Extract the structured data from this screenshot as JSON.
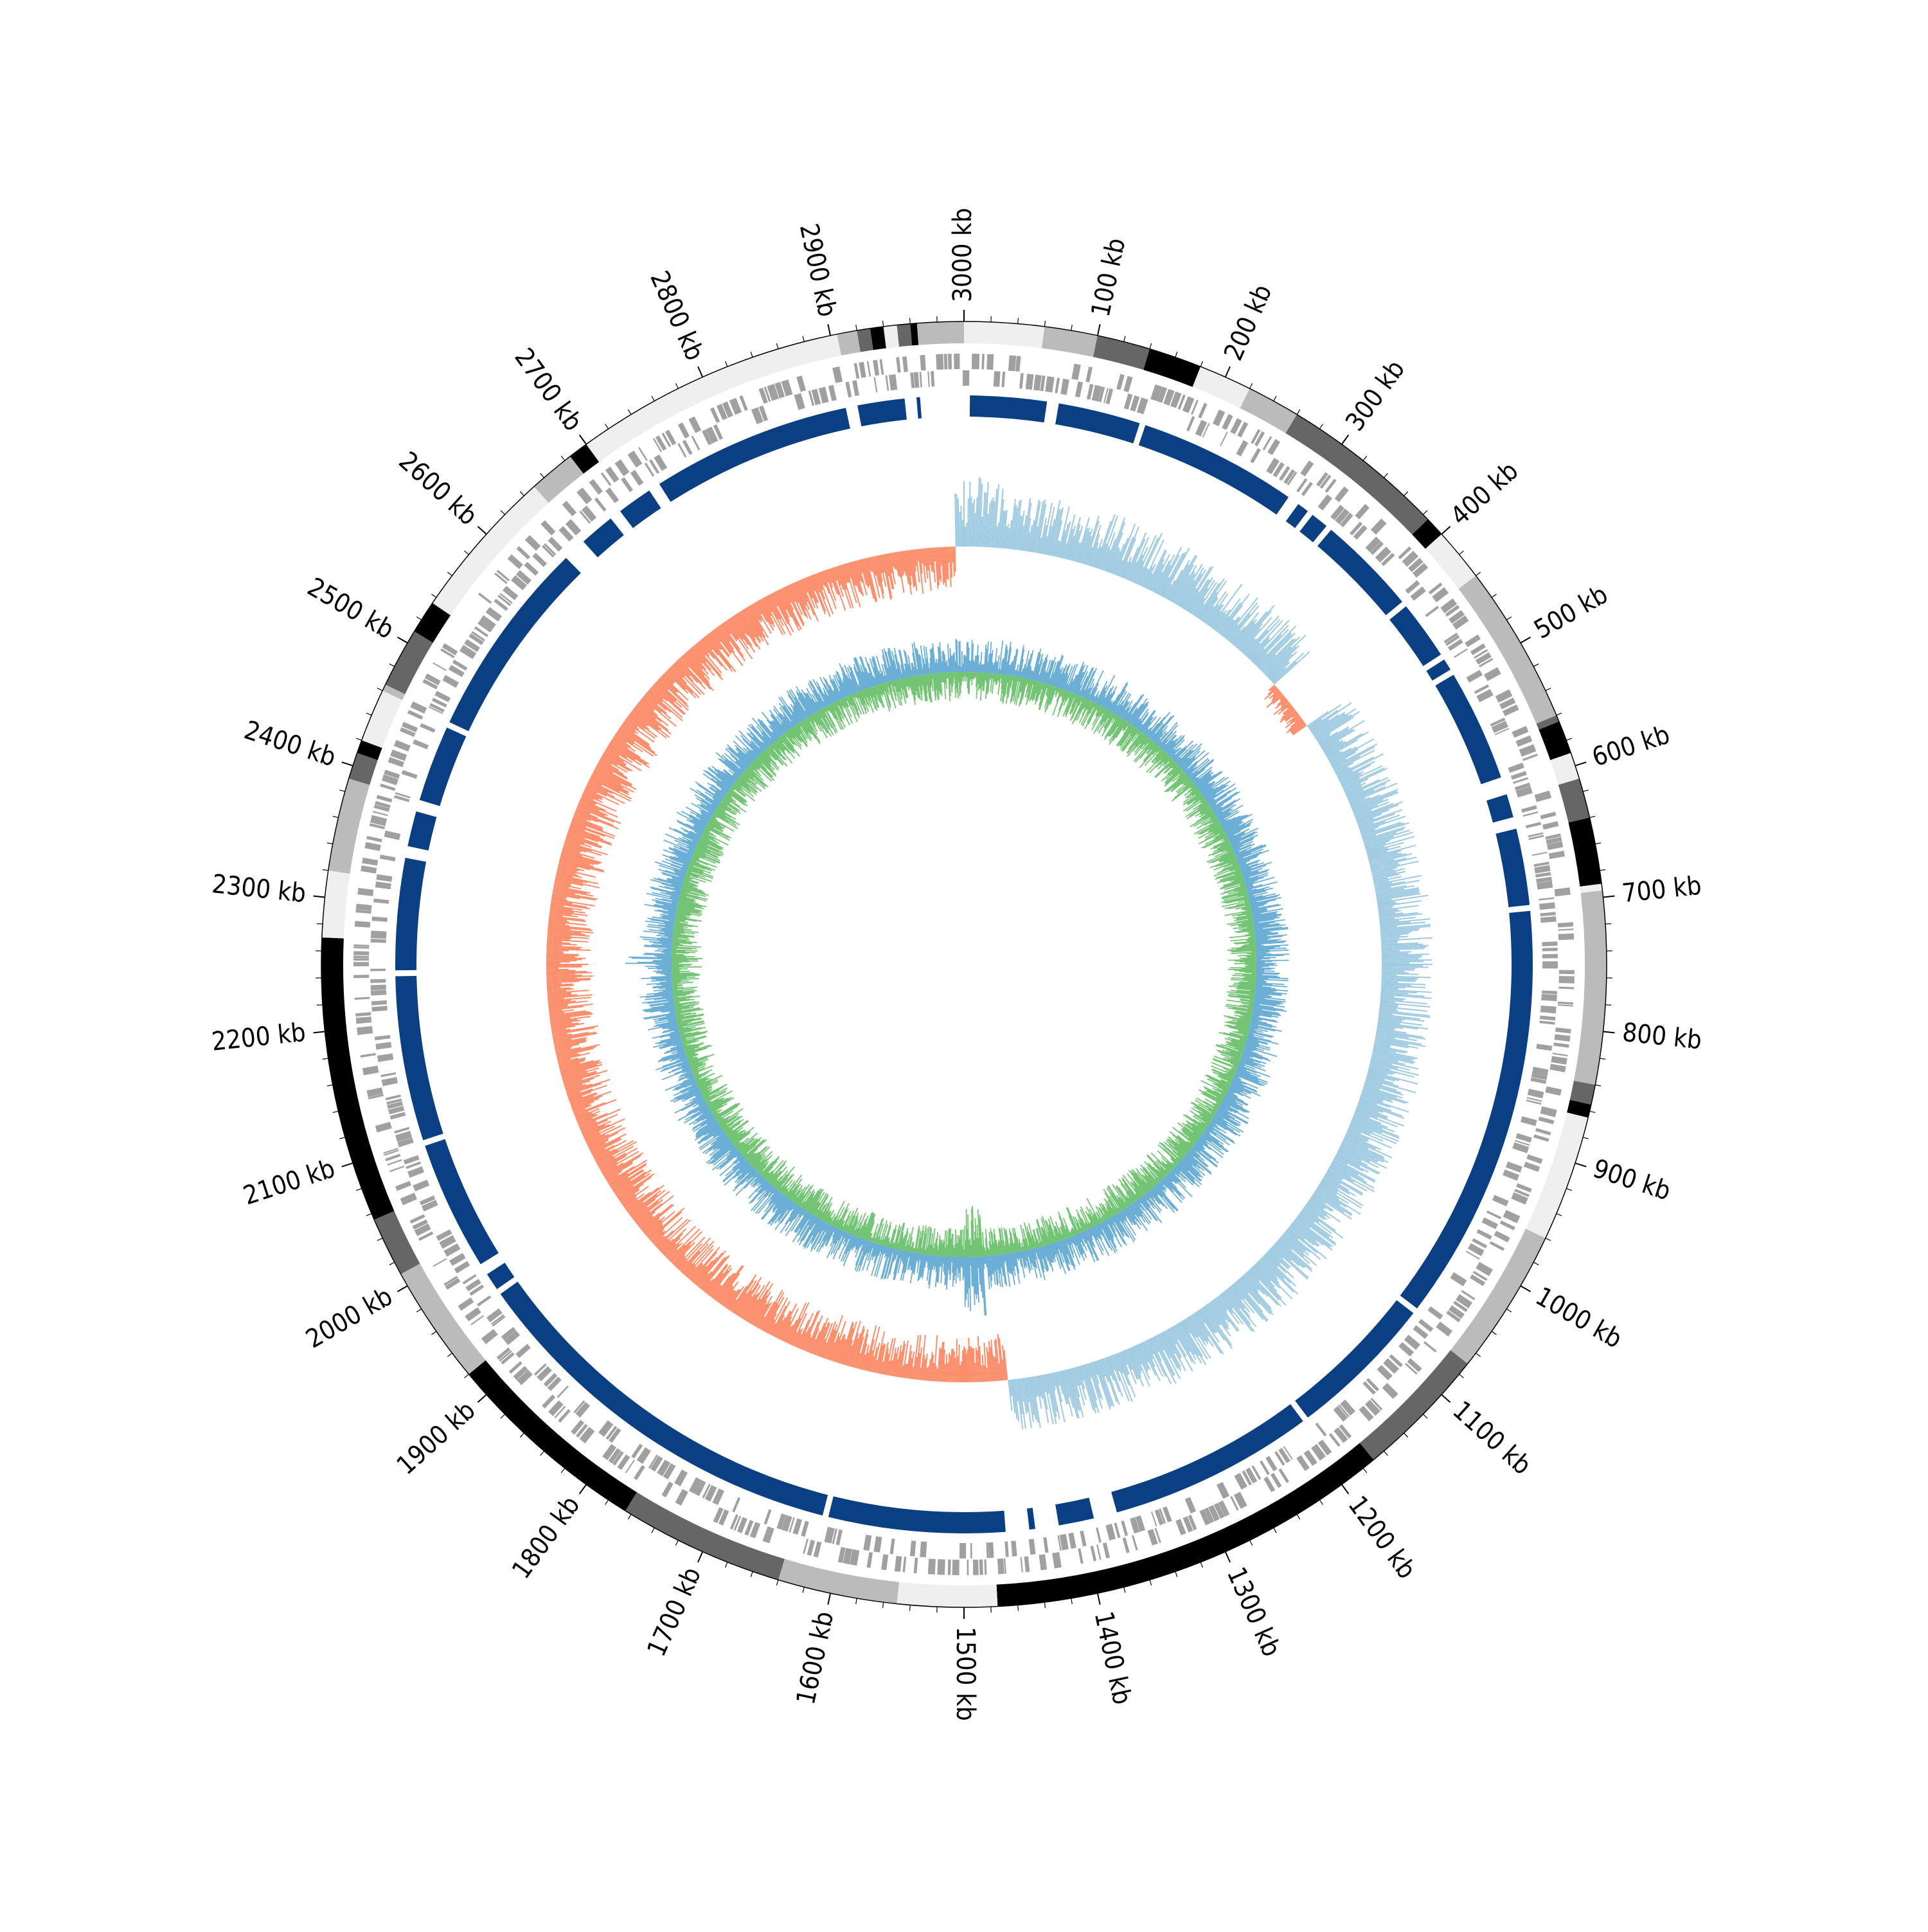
{
  "chart_data": {
    "type": "circular-genome",
    "genome_length_kb": 3000,
    "tick_unit": "kb",
    "major_tick_step_kb": 100,
    "minor_tick_step_kb": 20,
    "tick_labels": [
      "3000 kb",
      "100 kb",
      "200 kb",
      "300 kb",
      "400 kb",
      "500 kb",
      "600 kb",
      "700 kb",
      "800 kb",
      "900 kb",
      "1000 kb",
      "1100 kb",
      "1200 kb",
      "1300 kb",
      "1400 kb",
      "1500 kb",
      "1600 kb",
      "1700 kb",
      "1800 kb",
      "1900 kb",
      "2000 kb",
      "2100 kb",
      "2200 kb",
      "2300 kb",
      "2400 kb",
      "2500 kb",
      "2600 kb",
      "2700 kb",
      "2800 kb",
      "2900 kb"
    ],
    "colors": {
      "band_light": "#efefef",
      "band_medium": "#bbbbbb",
      "band_dark": "#666666",
      "band_black": "#000000",
      "feature": "#a0a0a0",
      "synteny_blocks": "#0a3f84",
      "skew_positive": "#9ecae1",
      "skew_negative": "#fc8d6a",
      "gc_outer": "#6baed6",
      "gc_inner": "#74c476"
    },
    "outer_bands": [
      {
        "start": 0,
        "end": 60,
        "shade": "light"
      },
      {
        "start": 60,
        "end": 100,
        "shade": "medium"
      },
      {
        "start": 100,
        "end": 140,
        "shade": "dark"
      },
      {
        "start": 140,
        "end": 180,
        "shade": "black"
      },
      {
        "start": 180,
        "end": 220,
        "shade": "light"
      },
      {
        "start": 220,
        "end": 260,
        "shade": "medium"
      },
      {
        "start": 260,
        "end": 385,
        "shade": "dark"
      },
      {
        "start": 385,
        "end": 400,
        "shade": "black"
      },
      {
        "start": 400,
        "end": 440,
        "shade": "light"
      },
      {
        "start": 440,
        "end": 560,
        "shade": "medium"
      },
      {
        "start": 560,
        "end": 565,
        "shade": "dark"
      },
      {
        "start": 565,
        "end": 590,
        "shade": "black"
      },
      {
        "start": 590,
        "end": 610,
        "shade": "light"
      },
      {
        "start": 610,
        "end": 640,
        "shade": "dark"
      },
      {
        "start": 640,
        "end": 690,
        "shade": "black"
      },
      {
        "start": 690,
        "end": 695,
        "shade": "light"
      },
      {
        "start": 695,
        "end": 840,
        "shade": "medium"
      },
      {
        "start": 840,
        "end": 855,
        "shade": "dark"
      },
      {
        "start": 855,
        "end": 865,
        "shade": "black"
      },
      {
        "start": 865,
        "end": 960,
        "shade": "light"
      },
      {
        "start": 960,
        "end": 1070,
        "shade": "medium"
      },
      {
        "start": 1070,
        "end": 1170,
        "shade": "dark"
      },
      {
        "start": 1170,
        "end": 1475,
        "shade": "black"
      },
      {
        "start": 1475,
        "end": 1550,
        "shade": "light"
      },
      {
        "start": 1550,
        "end": 1640,
        "shade": "medium"
      },
      {
        "start": 1640,
        "end": 1765,
        "shade": "dark"
      },
      {
        "start": 1765,
        "end": 1920,
        "shade": "black"
      },
      {
        "start": 1920,
        "end": 2010,
        "shade": "medium"
      },
      {
        "start": 2010,
        "end": 2055,
        "shade": "dark"
      },
      {
        "start": 2055,
        "end": 2270,
        "shade": "black"
      },
      {
        "start": 2270,
        "end": 2320,
        "shade": "light"
      },
      {
        "start": 2320,
        "end": 2390,
        "shade": "medium"
      },
      {
        "start": 2390,
        "end": 2410,
        "shade": "dark"
      },
      {
        "start": 2410,
        "end": 2420,
        "shade": "black"
      },
      {
        "start": 2420,
        "end": 2460,
        "shade": "light"
      },
      {
        "start": 2460,
        "end": 2465,
        "shade": "medium"
      },
      {
        "start": 2465,
        "end": 2510,
        "shade": "dark"
      },
      {
        "start": 2510,
        "end": 2535,
        "shade": "black"
      },
      {
        "start": 2535,
        "end": 2650,
        "shade": "light"
      },
      {
        "start": 2650,
        "end": 2685,
        "shade": "medium"
      },
      {
        "start": 2685,
        "end": 2700,
        "shade": "black"
      },
      {
        "start": 2700,
        "end": 2905,
        "shade": "light"
      },
      {
        "start": 2905,
        "end": 2920,
        "shade": "medium"
      },
      {
        "start": 2920,
        "end": 2930,
        "shade": "dark"
      },
      {
        "start": 2930,
        "end": 2940,
        "shade": "black"
      },
      {
        "start": 2940,
        "end": 2950,
        "shade": "light"
      },
      {
        "start": 2950,
        "end": 2960,
        "shade": "dark"
      },
      {
        "start": 2960,
        "end": 2965,
        "shade": "black"
      },
      {
        "start": 2965,
        "end": 3000,
        "shade": "medium"
      }
    ],
    "synteny_blocks": [
      {
        "start": 5,
        "end": 70
      },
      {
        "start": 80,
        "end": 150
      },
      {
        "start": 155,
        "end": 290
      },
      {
        "start": 300,
        "end": 310
      },
      {
        "start": 315,
        "end": 330
      },
      {
        "start": 335,
        "end": 420
      },
      {
        "start": 425,
        "end": 475
      },
      {
        "start": 480,
        "end": 490
      },
      {
        "start": 495,
        "end": 590
      },
      {
        "start": 605,
        "end": 625
      },
      {
        "start": 635,
        "end": 700
      },
      {
        "start": 705,
        "end": 1060
      },
      {
        "start": 1065,
        "end": 1190
      },
      {
        "start": 1195,
        "end": 1370
      },
      {
        "start": 1390,
        "end": 1420
      },
      {
        "start": 1440,
        "end": 1445
      },
      {
        "start": 1465,
        "end": 1615
      },
      {
        "start": 1620,
        "end": 1955
      },
      {
        "start": 1960,
        "end": 1975
      },
      {
        "start": 1985,
        "end": 2095
      },
      {
        "start": 2100,
        "end": 2240
      },
      {
        "start": 2245,
        "end": 2340
      },
      {
        "start": 2350,
        "end": 2380
      },
      {
        "start": 2390,
        "end": 2455
      },
      {
        "start": 2460,
        "end": 2630
      },
      {
        "start": 2650,
        "end": 2680
      },
      {
        "start": 2690,
        "end": 2720
      },
      {
        "start": 2730,
        "end": 2900
      },
      {
        "start": 2910,
        "end": 2950
      },
      {
        "start": 2960,
        "end": 2963
      }
    ],
    "skew_regions": [
      {
        "start": 0,
        "end": 40,
        "sign": "positive",
        "level": 0.7
      },
      {
        "start": 40,
        "end": 400,
        "sign": "positive",
        "level": 0.55
      },
      {
        "start": 400,
        "end": 460,
        "sign": "negative",
        "level": 0.2
      },
      {
        "start": 460,
        "end": 1450,
        "sign": "positive",
        "level": 0.5
      },
      {
        "start": 1450,
        "end": 2990,
        "sign": "negative",
        "level": 0.45
      },
      {
        "start": 2990,
        "end": 3000,
        "sign": "positive",
        "level": 0.6
      }
    ],
    "gc_content": {
      "baseline_level": 0.5,
      "spike_regions": [
        {
          "start": 1470,
          "end": 1500,
          "level": 0.9
        },
        {
          "start": 2245,
          "end": 2265,
          "level": 0.7
        }
      ]
    }
  }
}
